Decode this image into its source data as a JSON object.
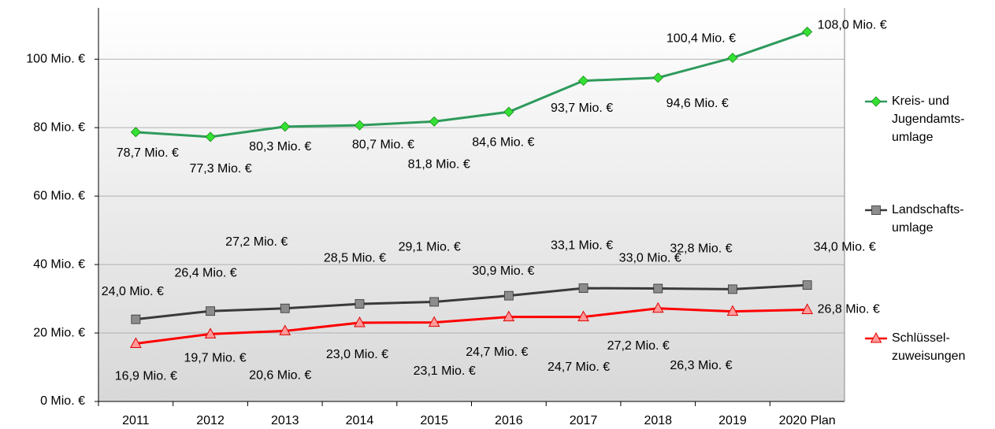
{
  "chart_data": {
    "type": "line",
    "categories": [
      "2011",
      "2012",
      "2013",
      "2014",
      "2015",
      "2016",
      "2017",
      "2018",
      "2019",
      "2020 Plan"
    ],
    "ylim": [
      0,
      115
    ],
    "yticks": [
      {
        "value": 0,
        "label": "0 Mio. €"
      },
      {
        "value": 20,
        "label": "20 Mio. €"
      },
      {
        "value": 40,
        "label": "40 Mio. €"
      },
      {
        "value": 60,
        "label": "60 Mio. €"
      },
      {
        "value": 80,
        "label": "80 Mio. €"
      },
      {
        "value": 100,
        "label": "100 Mio. €"
      }
    ],
    "grid": true,
    "legend": "right",
    "series": [
      {
        "name": "Kreis- und Jugendamts-umlage",
        "color": "#2e9a5c",
        "marker": "diamond",
        "marker_color": "#33e033",
        "values": [
          78.7,
          77.3,
          80.3,
          80.7,
          81.8,
          84.6,
          93.7,
          94.6,
          100.4,
          108.0
        ],
        "value_labels": [
          "78,7 Mio. €",
          "77,3 Mio. €",
          "80,3 Mio. €",
          "80,7 Mio. €",
          "81,8 Mio. €",
          "84,6 Mio. €",
          "93,7 Mio. €",
          "94,6 Mio. €",
          "100,4 Mio. €",
          "108,0 Mio. €"
        ]
      },
      {
        "name": "Landschafts-umlage",
        "color": "#3a3a3a",
        "marker": "square",
        "marker_color": "#8c8c8c",
        "values": [
          24.0,
          26.4,
          27.2,
          28.5,
          29.1,
          30.9,
          33.1,
          33.0,
          32.8,
          34.0
        ],
        "value_labels": [
          "24,0 Mio. €",
          "26,4 Mio. €",
          "27,2 Mio. €",
          "28,5 Mio. €",
          "29,1 Mio. €",
          "30,9 Mio. €",
          "33,1 Mio. €",
          "33,0 Mio. €",
          "32,8 Mio. €",
          "34,0 Mio. €"
        ]
      },
      {
        "name": "Schlüssel-zuweisungen",
        "color": "#ff0000",
        "marker": "triangle",
        "marker_color": "#ff9999",
        "values": [
          16.9,
          19.7,
          20.6,
          23.0,
          23.1,
          24.7,
          24.7,
          27.2,
          26.3,
          26.8
        ],
        "value_labels": [
          "16,9 Mio. €",
          "19,7 Mio. €",
          "20,6 Mio. €",
          "23,0 Mio. €",
          "23,1 Mio. €",
          "24,7 Mio. €",
          "24,7 Mio. €",
          "27,2 Mio. €",
          "26,3 Mio. €",
          "26,8 Mio. €"
        ]
      }
    ]
  }
}
